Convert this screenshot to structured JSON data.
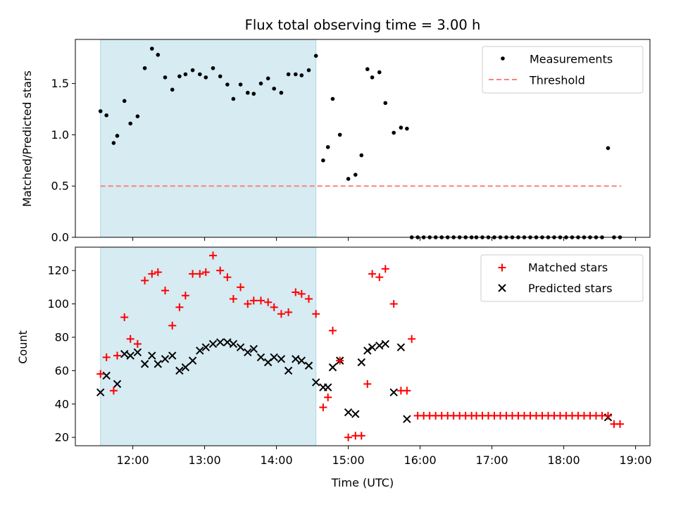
{
  "chart_data": {
    "type": "scatter",
    "title": "Flux total observing time = 3.00 h",
    "xlabel": "Time (UTC)",
    "xticks": [
      "12:00",
      "13:00",
      "14:00",
      "15:00",
      "16:00",
      "17:00",
      "18:00",
      "19:00"
    ],
    "highlight": {
      "start": "11:33",
      "end": "14:33",
      "color": "#add8e6"
    },
    "top_panel": {
      "ylabel": "Matched/Predicted stars",
      "ylim": [
        0,
        1.93
      ],
      "yticks": [
        "0.0",
        "0.5",
        "1.0",
        "1.5"
      ],
      "threshold": {
        "name": "Threshold",
        "value": 0.5,
        "x_start": "11:33",
        "x_end": "18:48",
        "color": "#ff8080"
      },
      "measurements": {
        "name": "Measurements",
        "x": [
          "11:33",
          "11:38",
          "11:44",
          "11:47",
          "11:53",
          "11:58",
          "12:04",
          "12:10",
          "12:16",
          "12:21",
          "12:27",
          "12:33",
          "12:39",
          "12:44",
          "12:50",
          "12:56",
          "13:01",
          "13:07",
          "13:13",
          "13:19",
          "13:24",
          "13:30",
          "13:36",
          "13:41",
          "13:47",
          "13:53",
          "13:58",
          "14:04",
          "14:10",
          "14:16",
          "14:21",
          "14:27",
          "14:33",
          "14:39",
          "14:43",
          "14:47",
          "14:53",
          "15:00",
          "15:06",
          "15:11",
          "15:16",
          "15:20",
          "15:26",
          "15:31",
          "15:38",
          "15:44",
          "15:49",
          "15:53",
          "15:58",
          "16:03",
          "16:08",
          "16:13",
          "16:18",
          "16:23",
          "16:28",
          "16:33",
          "16:38",
          "16:43",
          "16:47",
          "16:52",
          "16:57",
          "17:02",
          "17:07",
          "17:12",
          "17:17",
          "17:22",
          "17:27",
          "17:32",
          "17:37",
          "17:42",
          "17:47",
          "17:52",
          "17:57",
          "18:02",
          "18:07",
          "18:12",
          "18:17",
          "18:22",
          "18:27",
          "18:32",
          "18:37",
          "18:42",
          "18:47"
        ],
        "y": [
          1.23,
          1.19,
          0.92,
          0.99,
          1.33,
          1.11,
          1.18,
          1.65,
          1.84,
          1.78,
          1.56,
          1.44,
          1.57,
          1.59,
          1.63,
          1.59,
          1.56,
          1.65,
          1.57,
          1.49,
          1.35,
          1.49,
          1.41,
          1.4,
          1.5,
          1.55,
          1.45,
          1.41,
          1.59,
          1.59,
          1.58,
          1.63,
          1.77,
          0.75,
          0.88,
          1.35,
          1.0,
          0.57,
          0.61,
          0.8,
          1.64,
          1.56,
          1.61,
          1.31,
          1.02,
          1.07,
          1.06,
          0,
          0,
          0,
          0,
          0,
          0,
          0,
          0,
          0,
          0,
          0,
          0,
          0,
          0,
          0,
          0,
          0,
          0,
          0,
          0,
          0,
          0,
          0,
          0,
          0,
          0,
          0,
          0,
          0,
          0,
          0,
          0,
          0,
          0.87,
          0,
          0
        ]
      }
    },
    "bottom_panel": {
      "ylabel": "Count",
      "ylim": [
        15,
        134
      ],
      "yticks": [
        "20",
        "40",
        "60",
        "80",
        "100",
        "120"
      ],
      "series": [
        {
          "name": "Matched stars",
          "color": "#ff0000",
          "marker": "plus",
          "x": [
            "11:33",
            "11:38",
            "11:44",
            "11:47",
            "11:53",
            "11:58",
            "12:04",
            "12:10",
            "12:16",
            "12:21",
            "12:27",
            "12:33",
            "12:39",
            "12:44",
            "12:50",
            "12:56",
            "13:01",
            "13:07",
            "13:13",
            "13:19",
            "13:24",
            "13:30",
            "13:36",
            "13:41",
            "13:47",
            "13:53",
            "13:58",
            "14:04",
            "14:10",
            "14:16",
            "14:21",
            "14:27",
            "14:33",
            "14:39",
            "14:43",
            "14:47",
            "14:53",
            "15:00",
            "15:06",
            "15:11",
            "15:16",
            "15:20",
            "15:26",
            "15:31",
            "15:38",
            "15:44",
            "15:49",
            "15:53",
            "15:58",
            "16:03",
            "16:08",
            "16:13",
            "16:18",
            "16:23",
            "16:28",
            "16:33",
            "16:38",
            "16:43",
            "16:47",
            "16:52",
            "16:57",
            "17:02",
            "17:07",
            "17:12",
            "17:17",
            "17:22",
            "17:27",
            "17:32",
            "17:37",
            "17:42",
            "17:47",
            "17:52",
            "17:57",
            "18:02",
            "18:07",
            "18:12",
            "18:17",
            "18:22",
            "18:27",
            "18:32",
            "18:37",
            "18:42",
            "18:47"
          ],
          "y": [
            58,
            68,
            48,
            69,
            92,
            79,
            76,
            114,
            118,
            119,
            108,
            87,
            98,
            105,
            118,
            118,
            119,
            129,
            120,
            116,
            103,
            110,
            100,
            102,
            102,
            101,
            98,
            94,
            95,
            107,
            106,
            103,
            94,
            38,
            44,
            84,
            66,
            20,
            21,
            21,
            52,
            118,
            116,
            121,
            100,
            48,
            48,
            79,
            33,
            33,
            33,
            33,
            33,
            33,
            33,
            33,
            33,
            33,
            33,
            33,
            33,
            33,
            33,
            33,
            33,
            33,
            33,
            33,
            33,
            33,
            33,
            33,
            33,
            33,
            33,
            33,
            33,
            33,
            33,
            33,
            33,
            28,
            28
          ]
        },
        {
          "name": "Predicted stars",
          "color": "#000000",
          "marker": "x",
          "x": [
            "11:33",
            "11:38",
            "11:47",
            "11:53",
            "11:58",
            "12:04",
            "12:10",
            "12:16",
            "12:21",
            "12:27",
            "12:33",
            "12:39",
            "12:44",
            "12:50",
            "12:56",
            "13:01",
            "13:07",
            "13:13",
            "13:19",
            "13:24",
            "13:30",
            "13:36",
            "13:41",
            "13:47",
            "13:53",
            "13:58",
            "14:04",
            "14:10",
            "14:16",
            "14:21",
            "14:27",
            "14:33",
            "14:39",
            "14:43",
            "14:47",
            "14:53",
            "15:00",
            "15:06",
            "15:11",
            "15:16",
            "15:20",
            "15:26",
            "15:31",
            "15:38",
            "15:44",
            "15:49",
            "18:37"
          ],
          "y": [
            47,
            57,
            52,
            70,
            69,
            71,
            64,
            69,
            64,
            67,
            69,
            60,
            62,
            66,
            72,
            74,
            76,
            77,
            77,
            76,
            74,
            71,
            73,
            68,
            65,
            68,
            67,
            60,
            67,
            66,
            63,
            53,
            50,
            50,
            62,
            66,
            35,
            34,
            65,
            72,
            74,
            75,
            76,
            47,
            74,
            31,
            32
          ]
        }
      ]
    }
  }
}
